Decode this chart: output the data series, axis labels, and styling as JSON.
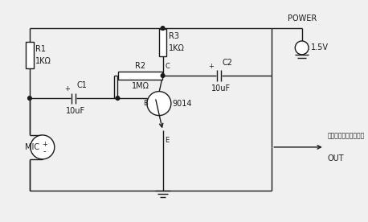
{
  "background_color": "#f0f0f0",
  "line_color": "#1a1a1a",
  "labels": {
    "R1": "R1",
    "R1v": "1KΩ",
    "R2": "R2",
    "R2v": "1MΩ",
    "R3": "R3",
    "R3v": "1KΩ",
    "C1": "C1",
    "C1v": "10uF",
    "C2": "C2",
    "C2v": "10uF",
    "MIC": "MIC",
    "transistor": "9014",
    "power": "POWER",
    "voltage": "1.5V",
    "out": "OUT",
    "chinese": "接话筒线正级（芯线）",
    "B": "B",
    "C_label": "C",
    "E": "E"
  }
}
